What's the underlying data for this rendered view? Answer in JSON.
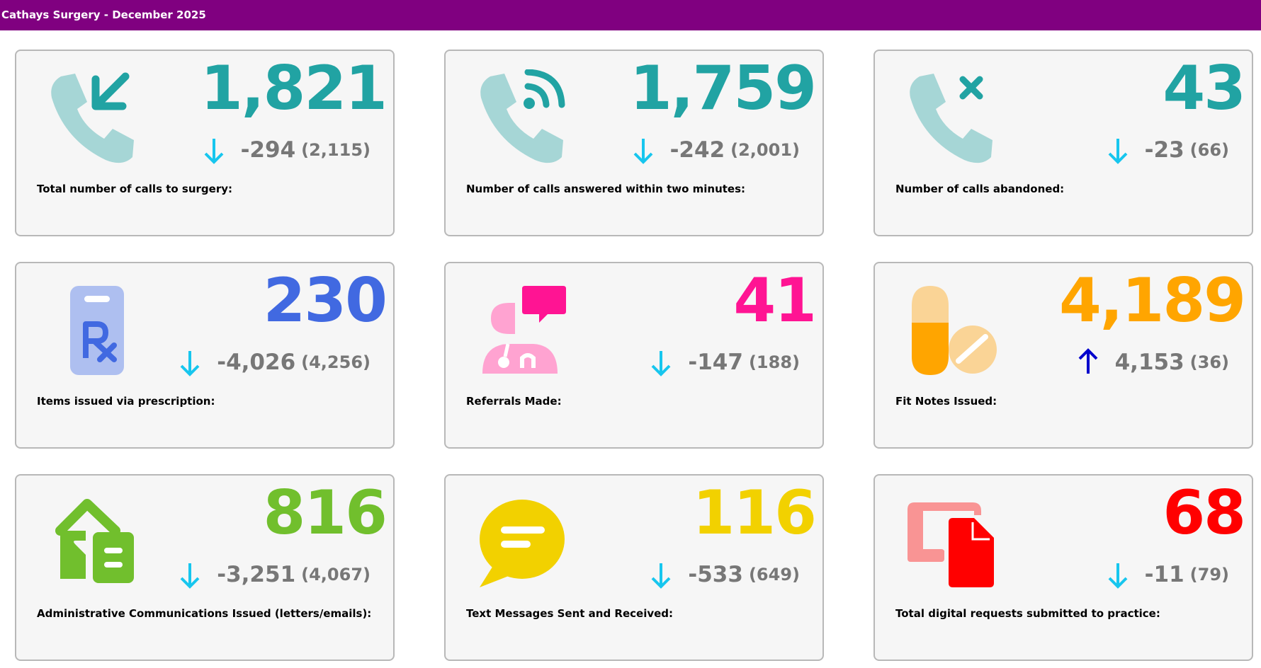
{
  "header": {
    "title": "Cathays Surgery - December 2025"
  },
  "colors": {
    "header_bg": "#800080",
    "teal": "#21a3a3",
    "teal_light": "#a6d6d6",
    "blue": "#4169e1",
    "blue_light": "#aebff0",
    "pink": "#ff1493",
    "pink_light": "#ffa3d1",
    "orange": "#ffa500",
    "orange_light": "#fad496",
    "green": "#71bf2d",
    "yellow": "#f2d100",
    "red": "#ff0000",
    "red_light": "#f99494",
    "arrow_down": "#17c6ee",
    "arrow_up": "#0000cc",
    "delta_text": "#777777"
  },
  "cards": [
    {
      "icon": "phone-incoming-icon",
      "value": "1,821",
      "trend": "down",
      "delta": "-294",
      "previous": "(2,115)",
      "label": "Total number of calls to surgery:"
    },
    {
      "icon": "phone-wifi-icon",
      "value": "1,759",
      "trend": "down",
      "delta": "-242",
      "previous": "(2,001)",
      "label": "Number of calls answered within two minutes:"
    },
    {
      "icon": "phone-cross-icon",
      "value": "43",
      "trend": "down",
      "delta": "-23",
      "previous": "(66)",
      "label": "Number of calls abandoned:"
    },
    {
      "icon": "prescription-clipboard-icon",
      "value": "230",
      "trend": "down",
      "delta": "-4,026",
      "previous": "(4,256)",
      "label": "Items issued via prescription:"
    },
    {
      "icon": "doctor-speech-icon",
      "value": "41",
      "trend": "down",
      "delta": "-147",
      "previous": "(188)",
      "label": "Referrals Made:"
    },
    {
      "icon": "pills-icon",
      "value": "4,189",
      "trend": "up",
      "delta": "4,153",
      "previous": "(36)",
      "label": "Fit Notes Issued:"
    },
    {
      "icon": "house-letter-icon",
      "value": "816",
      "trend": "down",
      "delta": "-3,251",
      "previous": "(4,067)",
      "label": "Administrative Communications Issued (letters/emails):"
    },
    {
      "icon": "chat-bubble-icon",
      "value": "116",
      "trend": "down",
      "delta": "-533",
      "previous": "(649)",
      "label": "Text Messages Sent and Received:"
    },
    {
      "icon": "digital-document-icon",
      "value": "68",
      "trend": "down",
      "delta": "-11",
      "previous": "(79)",
      "label": "Total digital requests submitted to practice:"
    }
  ]
}
